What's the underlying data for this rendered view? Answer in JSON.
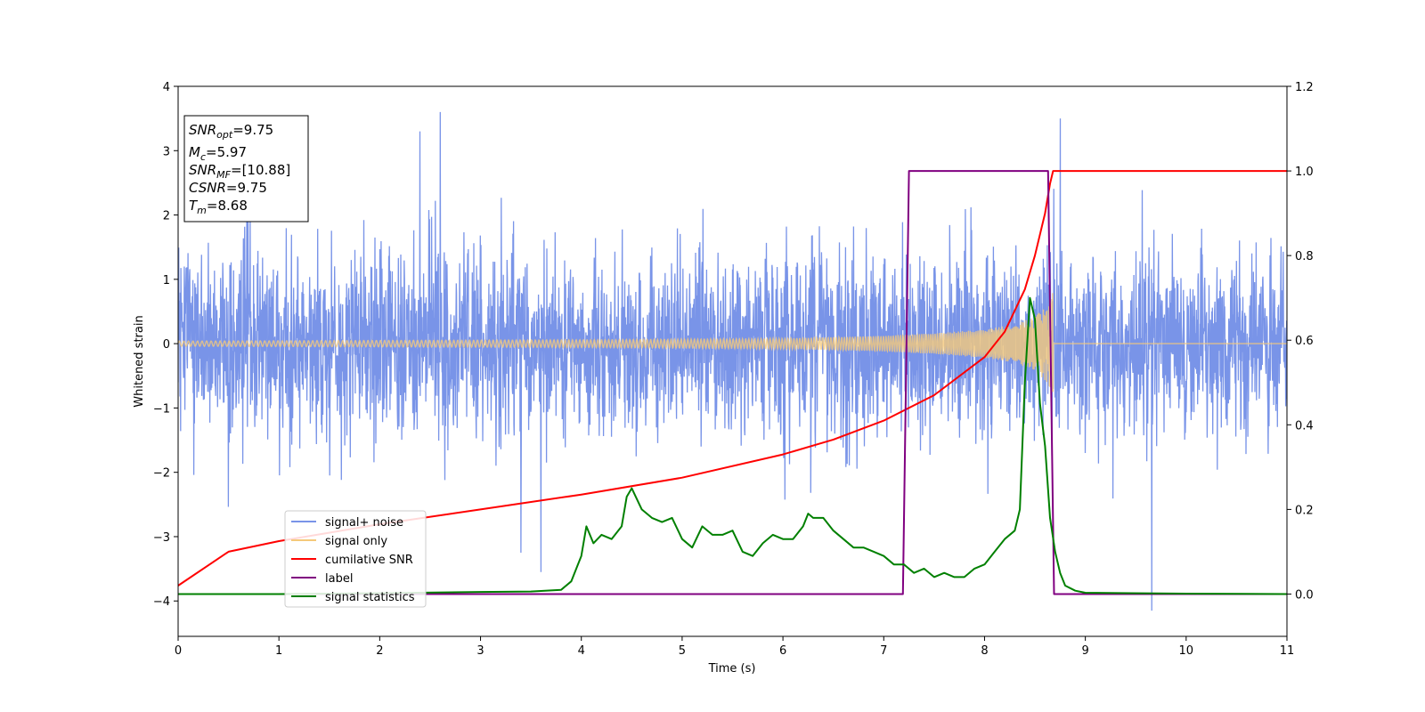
{
  "chart_data": {
    "type": "line",
    "xlabel": "Time (s)",
    "ylabel": "Whitened strain",
    "xlim": [
      0,
      11
    ],
    "ylim": [
      -4.55,
      4
    ],
    "y2lim": [
      -0.1,
      1.2
    ],
    "xticks": [
      "0",
      "1",
      "2",
      "3",
      "4",
      "5",
      "6",
      "7",
      "8",
      "9",
      "10",
      "11"
    ],
    "yticks": [
      "−4",
      "−3",
      "−2",
      "−1",
      "0",
      "1",
      "2",
      "3",
      "4"
    ],
    "y2ticks": [
      "0.0",
      "0.2",
      "0.4",
      "0.6",
      "0.8",
      "1.0",
      "1.2"
    ],
    "grid": false,
    "legend_position": "lower-left",
    "annotation": {
      "lines": [
        {
          "main": "SNR",
          "sub": "opt",
          "value": "=9.75"
        },
        {
          "main": "M",
          "sub": "c",
          "value": "=5.97"
        },
        {
          "main": "SNR",
          "sub": "MF",
          "value": "=[10.88]"
        },
        {
          "main": "CSNR",
          "sub": "",
          "value": "=9.75"
        },
        {
          "main": "T",
          "sub": "m",
          "value": "=8.68"
        }
      ]
    },
    "series": [
      {
        "name": "signal+ noise",
        "axis": "left",
        "color": "#7994e8",
        "kind": "noise",
        "std": 0.7,
        "peak_max": 3.6,
        "peak_min": -4.15
      },
      {
        "name": "signal only",
        "axis": "left",
        "color": "#f5c97a",
        "kind": "chirp",
        "envelope": {
          "t": [
            0,
            2,
            4,
            5,
            6,
            7,
            7.5,
            8,
            8.3,
            8.5,
            8.62,
            8.68
          ],
          "a": [
            0.04,
            0.05,
            0.06,
            0.07,
            0.08,
            0.12,
            0.16,
            0.22,
            0.3,
            0.42,
            0.6,
            0.8
          ]
        },
        "end": 8.68
      },
      {
        "name": "cumilative SNR",
        "axis": "right",
        "color": "#ff0000",
        "x": [
          0,
          0.5,
          1,
          2,
          3,
          4,
          5,
          6,
          6.5,
          7,
          7.5,
          8,
          8.2,
          8.4,
          8.5,
          8.6,
          8.65,
          8.68,
          11
        ],
        "y": [
          0.02,
          0.1,
          0.125,
          0.165,
          0.2,
          0.235,
          0.275,
          0.33,
          0.365,
          0.41,
          0.47,
          0.56,
          0.62,
          0.72,
          0.8,
          0.9,
          0.97,
          1.0,
          1.0
        ]
      },
      {
        "name": "label",
        "axis": "right",
        "color": "#800080",
        "x": [
          0,
          7.19,
          7.25,
          8.63,
          8.69,
          11
        ],
        "y": [
          0,
          0,
          1,
          1,
          0,
          0
        ]
      },
      {
        "name": "signal statistics",
        "axis": "right",
        "color": "#008000",
        "x": [
          0,
          1,
          2,
          3,
          3.5,
          3.8,
          3.9,
          4.0,
          4.05,
          4.12,
          4.2,
          4.3,
          4.4,
          4.45,
          4.5,
          4.6,
          4.7,
          4.8,
          4.9,
          5.0,
          5.1,
          5.2,
          5.3,
          5.4,
          5.5,
          5.6,
          5.7,
          5.8,
          5.9,
          6.0,
          6.1,
          6.2,
          6.25,
          6.3,
          6.4,
          6.5,
          6.6,
          6.7,
          6.8,
          6.9,
          7.0,
          7.1,
          7.2,
          7.3,
          7.4,
          7.5,
          7.6,
          7.7,
          7.8,
          7.9,
          8.0,
          8.1,
          8.2,
          8.3,
          8.35,
          8.4,
          8.45,
          8.5,
          8.55,
          8.6,
          8.65,
          8.7,
          8.75,
          8.8,
          8.9,
          9.0,
          10,
          11
        ],
        "y": [
          0,
          0,
          0.002,
          0.005,
          0.006,
          0.01,
          0.03,
          0.09,
          0.16,
          0.12,
          0.14,
          0.13,
          0.16,
          0.23,
          0.25,
          0.2,
          0.18,
          0.17,
          0.18,
          0.13,
          0.11,
          0.16,
          0.14,
          0.14,
          0.15,
          0.1,
          0.09,
          0.12,
          0.14,
          0.13,
          0.13,
          0.16,
          0.19,
          0.18,
          0.18,
          0.15,
          0.13,
          0.11,
          0.11,
          0.1,
          0.09,
          0.07,
          0.07,
          0.05,
          0.06,
          0.04,
          0.05,
          0.04,
          0.04,
          0.06,
          0.07,
          0.1,
          0.13,
          0.15,
          0.2,
          0.5,
          0.7,
          0.65,
          0.45,
          0.35,
          0.18,
          0.1,
          0.05,
          0.02,
          0.008,
          0.003,
          0.001,
          0
        ]
      }
    ]
  }
}
